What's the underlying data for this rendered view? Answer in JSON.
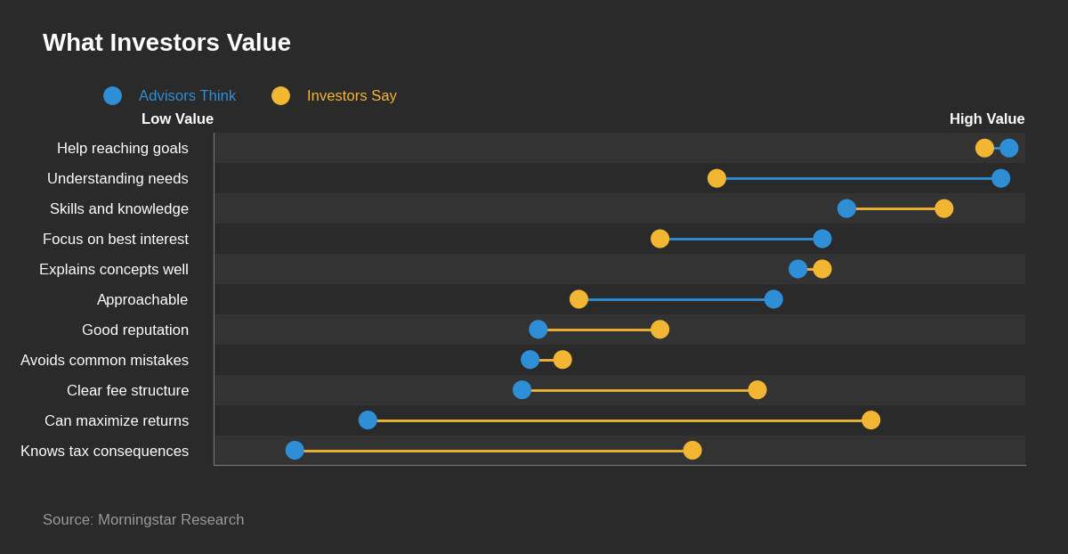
{
  "chart_data": {
    "type": "dumbbell",
    "title": "What Investors Value",
    "categories": [
      "Help reaching goals",
      "Understanding needs",
      "Skills and knowledge",
      "Focus on best interest",
      "Explains concepts well",
      "Approachable",
      "Good reputation",
      "Avoids common mistakes",
      "Clear fee structure",
      "Can maximize returns",
      "Knows tax consequences"
    ],
    "series": [
      {
        "name": "Advisors Think",
        "color": "#2e8fd6",
        "values": [
          98,
          97,
          78,
          75,
          72,
          69,
          40,
          39,
          38,
          19,
          10
        ]
      },
      {
        "name": "Investors Say",
        "color": "#f2b632",
        "values": [
          95,
          62,
          90,
          55,
          75,
          45,
          55,
          43,
          67,
          81,
          59
        ]
      }
    ],
    "xlim": [
      0,
      100
    ],
    "annotations": [
      "Low Value",
      "High Value"
    ],
    "source": "Source: Morningstar Research",
    "legend": "upper left",
    "tick_labels": "y",
    "marker": "o"
  }
}
